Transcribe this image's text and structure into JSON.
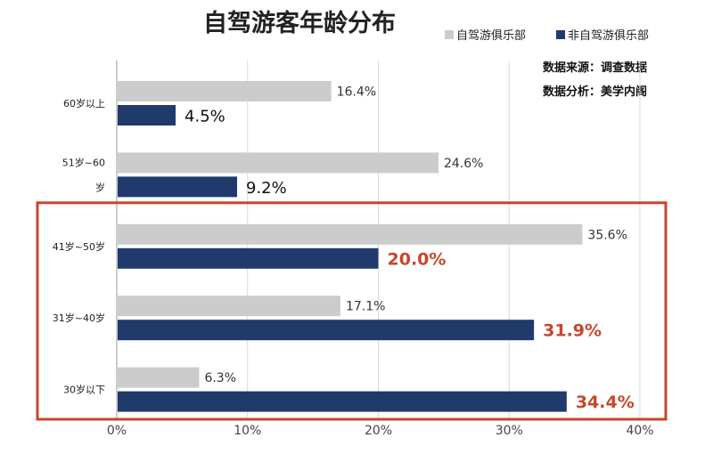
{
  "chart_data": {
    "type": "bar",
    "orientation": "horizontal",
    "title": "自驾游客年龄分布",
    "categories": [
      "60岁以上",
      "51岁~60岁",
      "41岁~50岁",
      "31岁~40岁",
      "30岁以下"
    ],
    "series": [
      {
        "name": "自驾游俱乐部",
        "color": "#cccccc",
        "values": [
          16.4,
          24.6,
          35.6,
          17.1,
          6.3
        ],
        "labels": [
          "16.4%",
          "24.6%",
          "35.6%",
          "17.1%",
          "6.3%"
        ]
      },
      {
        "name": "非自驾游俱乐部",
        "color": "#1f3a6b",
        "values": [
          4.5,
          9.2,
          20.0,
          31.9,
          34.4
        ],
        "labels": [
          "4.5%",
          "9.2%",
          "20.0%",
          "31.9%",
          "34.4%"
        ]
      }
    ],
    "xlim": [
      0,
      40
    ],
    "x_ticks": [
      "0%",
      "10%",
      "20%",
      "30%",
      "40%"
    ],
    "grid": true,
    "legend_position": "top-right",
    "highlight_categories": [
      "41岁~50岁",
      "31岁~40岁",
      "30岁以下"
    ],
    "highlight_color": "#c9452b",
    "annotations": [
      "数据来源：调查数据",
      "数据分析：美学内阁"
    ]
  }
}
